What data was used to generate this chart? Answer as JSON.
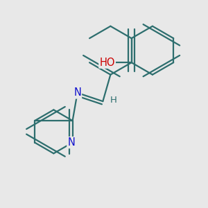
{
  "bg_color": "#e8e8e8",
  "bond_color": "#2d6e6e",
  "bond_width": 1.6,
  "dbo": 0.012,
  "atom_colors": {
    "O": "#cc0000",
    "N": "#1010cc",
    "bond": "#2d6e6e"
  },
  "font_size": 10.5,
  "figsize": [
    3.0,
    3.0
  ],
  "dpi": 100
}
